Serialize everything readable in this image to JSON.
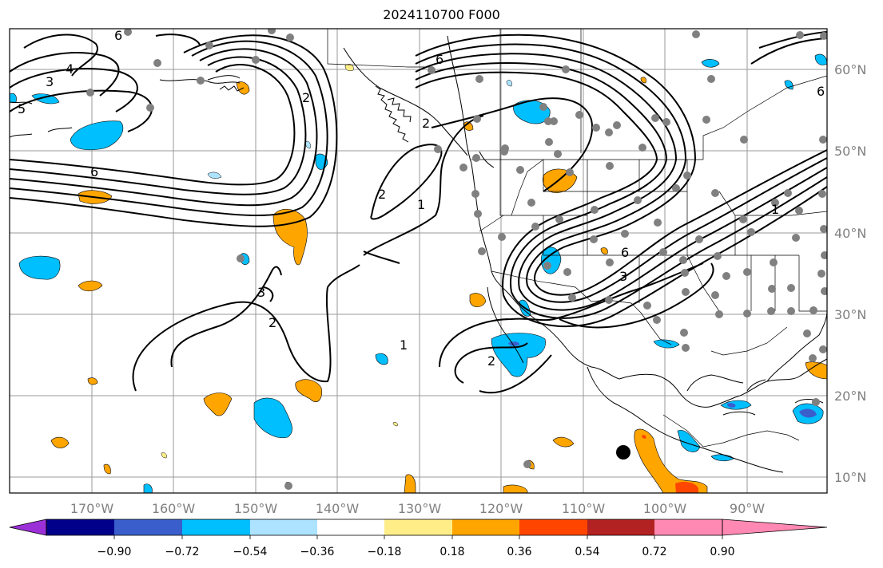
{
  "title": "2024110700 F000",
  "lon_labels": [
    "170°W",
    "160°W",
    "150°W",
    "140°W",
    "130°W",
    "120°W",
    "110°W",
    "100°W",
    "90°W"
  ],
  "lat_labels": [
    "60°N",
    "50°N",
    "40°N",
    "30°N",
    "20°N",
    "10°N"
  ],
  "contour_labels": [
    "6",
    "5",
    "4",
    "3",
    "2",
    "6",
    "2",
    "6",
    "6",
    "2",
    "1",
    "3",
    "2",
    "1",
    "2",
    "3",
    "6",
    "1"
  ],
  "colorbar": {
    "ticks": [
      "−0.90",
      "−0.72",
      "−0.54",
      "−0.36",
      "−0.18",
      "0.18",
      "0.36",
      "0.54",
      "0.72",
      "0.90"
    ],
    "colors": [
      "#9b30d9",
      "#00008b",
      "#3a5fcd",
      "#00bfff",
      "#aee3ff",
      "#ffffff",
      "#ffee88",
      "#ffa500",
      "#ff4500",
      "#b22222",
      "#ff89b2"
    ]
  }
}
